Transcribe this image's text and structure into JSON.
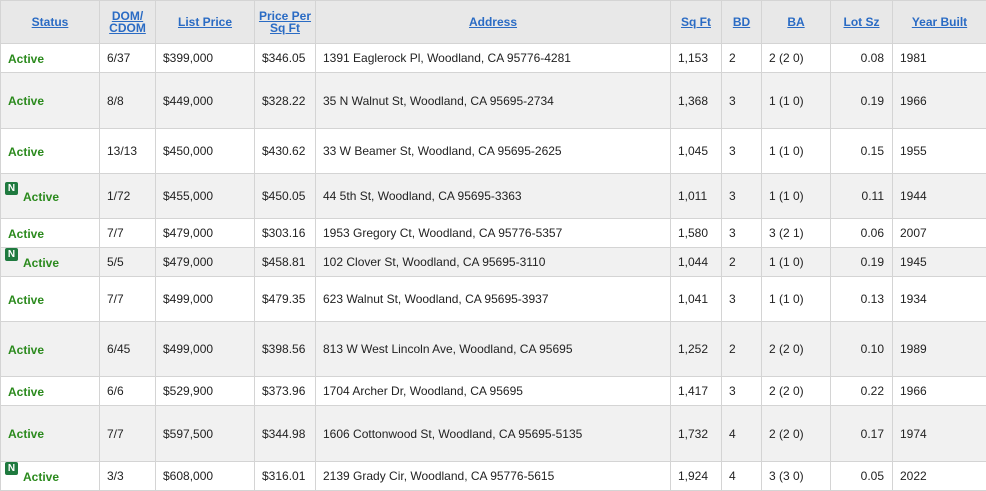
{
  "columns": [
    "Status",
    "DOM/ CDOM",
    "List Price",
    "Price Per Sq Ft",
    "Address",
    "Sq Ft",
    "BD",
    "BA",
    "Lot Sz",
    "Year Built"
  ],
  "rows": [
    {
      "new": false,
      "status": "Active",
      "dom": "6/37",
      "price": "$399,000",
      "ppsf": "$346.05",
      "address": "1391 Eaglerock Pl, Woodland, CA 95776-4281",
      "sqft": "1,153",
      "bd": "2",
      "ba": "2 (2 0)",
      "lot": "0.08",
      "year": "1981"
    },
    {
      "new": false,
      "status": "Active",
      "dom": "8/8",
      "price": "$449,000",
      "ppsf": "$328.22",
      "address": "35 N Walnut St, Woodland, CA 95695-2734",
      "sqft": "1,368",
      "bd": "3",
      "ba": "1 (1 0)",
      "lot": "0.19",
      "year": "1966"
    },
    {
      "new": false,
      "status": "Active",
      "dom": "13/13",
      "price": "$450,000",
      "ppsf": "$430.62",
      "address": "33 W Beamer St, Woodland, CA 95695-2625",
      "sqft": "1,045",
      "bd": "3",
      "ba": "1 (1 0)",
      "lot": "0.15",
      "year": "1955"
    },
    {
      "new": true,
      "status": "Active",
      "dom": "1/72",
      "price": "$455,000",
      "ppsf": "$450.05",
      "address": "44 5th St, Woodland, CA 95695-3363",
      "sqft": "1,011",
      "bd": "3",
      "ba": "1 (1 0)",
      "lot": "0.11",
      "year": "1944"
    },
    {
      "new": false,
      "status": "Active",
      "dom": "7/7",
      "price": "$479,000",
      "ppsf": "$303.16",
      "address": "1953 Gregory Ct, Woodland, CA 95776-5357",
      "sqft": "1,580",
      "bd": "3",
      "ba": "3 (2 1)",
      "lot": "0.06",
      "year": "2007"
    },
    {
      "new": true,
      "status": "Active",
      "dom": "5/5",
      "price": "$479,000",
      "ppsf": "$458.81",
      "address": "102 Clover St, Woodland, CA 95695-3110",
      "sqft": "1,044",
      "bd": "2",
      "ba": "1 (1 0)",
      "lot": "0.19",
      "year": "1945"
    },
    {
      "new": false,
      "status": "Active",
      "dom": "7/7",
      "price": "$499,000",
      "ppsf": "$479.35",
      "address": "623 Walnut St, Woodland, CA 95695-3937",
      "sqft": "1,041",
      "bd": "3",
      "ba": "1 (1 0)",
      "lot": "0.13",
      "year": "1934"
    },
    {
      "new": false,
      "status": "Active",
      "dom": "6/45",
      "price": "$499,000",
      "ppsf": "$398.56",
      "address": "813 W West Lincoln Ave, Woodland, CA 95695",
      "sqft": "1,252",
      "bd": "2",
      "ba": "2 (2 0)",
      "lot": "0.10",
      "year": "1989"
    },
    {
      "new": false,
      "status": "Active",
      "dom": "6/6",
      "price": "$529,900",
      "ppsf": "$373.96",
      "address": "1704 Archer Dr, Woodland, CA 95695",
      "sqft": "1,417",
      "bd": "3",
      "ba": "2 (2 0)",
      "lot": "0.22",
      "year": "1966"
    },
    {
      "new": false,
      "status": "Active",
      "dom": "7/7",
      "price": "$597,500",
      "ppsf": "$344.98",
      "address": "1606 Cottonwood St, Woodland, CA 95695-5135",
      "sqft": "1,732",
      "bd": "4",
      "ba": "2 (2 0)",
      "lot": "0.17",
      "year": "1974"
    },
    {
      "new": true,
      "status": "Active",
      "dom": "3/3",
      "price": "$608,000",
      "ppsf": "$316.01",
      "address": "2139 Grady Cir, Woodland, CA 95776-5615",
      "sqft": "1,924",
      "bd": "4",
      "ba": "3 (3 0)",
      "lot": "0.05",
      "year": "2022"
    }
  ],
  "badge_text": "N",
  "colors": {
    "status_green": "#2b8a1d",
    "link_blue": "#2a6bc4",
    "badge_green": "#1f7a3f"
  },
  "icons": {
    "new_listing": "new-listing-badge-icon"
  }
}
